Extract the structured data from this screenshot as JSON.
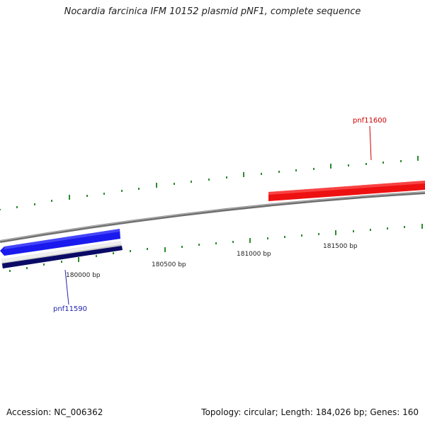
{
  "title": "Nocardia farcinica IFM 10152 plasmid pNF1, complete sequence",
  "footer": {
    "accession": "Accession: NC_006362",
    "summary": "Topology: circular; Length: 184,026 bp; Genes: 160"
  },
  "ruler": {
    "tick_labels": [
      "180000 bp",
      "180500 bp",
      "181000 bp",
      "181500 bp"
    ],
    "tick_color": "#2e8b2e"
  },
  "genes": [
    {
      "name": "pnf11590",
      "strand": "reverse",
      "color": "#1a1aee",
      "label_color": "#2222aa"
    },
    {
      "name": "pnf11600",
      "strand": "forward",
      "color": "#ee1111",
      "label_color": "#cc0000"
    }
  ],
  "colors": {
    "backbone": "#808080",
    "forward_gene": "#ee1111",
    "reverse_gene": "#1a1aee",
    "reverse_gene_shadow": "#0a0a66"
  }
}
